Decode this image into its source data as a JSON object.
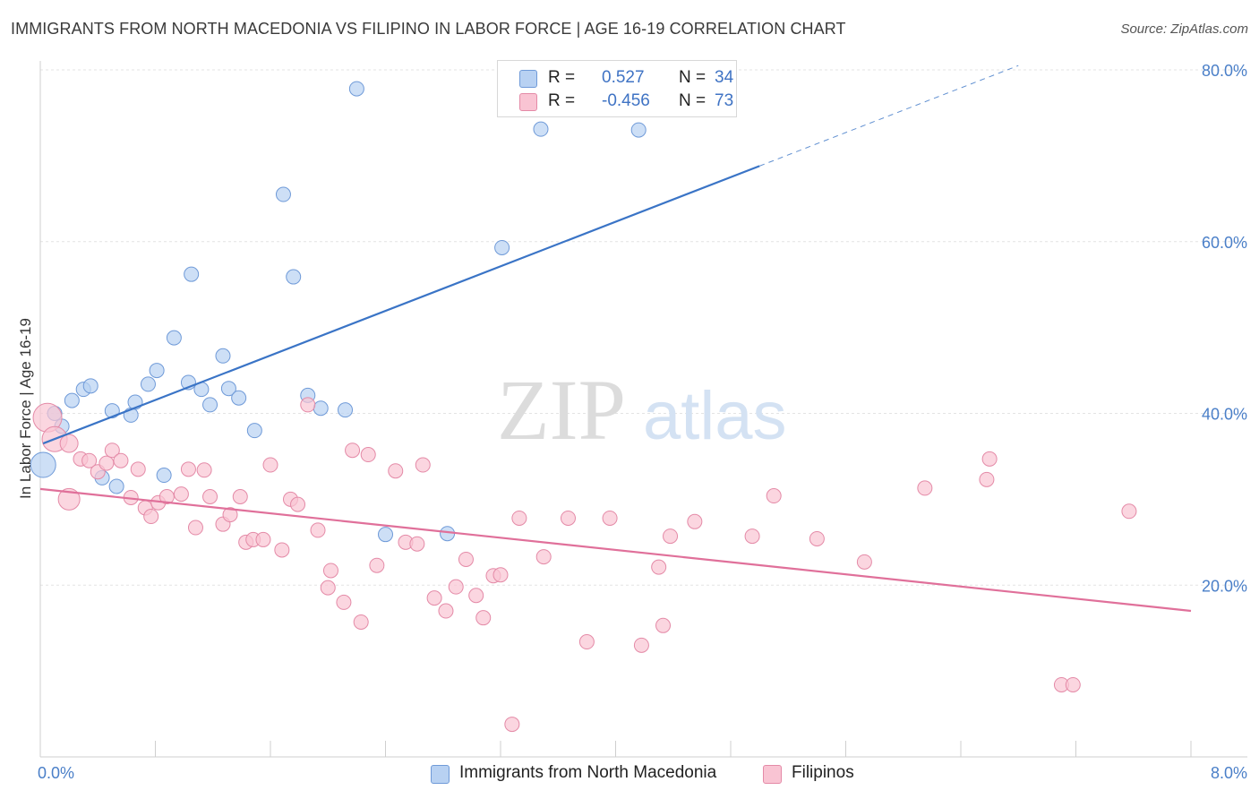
{
  "title": "IMMIGRANTS FROM NORTH MACEDONIA VS FILIPINO IN LABOR FORCE | AGE 16-19 CORRELATION CHART",
  "source": "Source: ZipAtlas.com",
  "watermark": {
    "zip": "ZIP",
    "atlas": "atlas"
  },
  "legend": {
    "series1": {
      "r_label": "R =",
      "r_value": "0.527",
      "n_label": "N =",
      "n_value": "34",
      "color": "#b8d1f2",
      "border": "#6f9ad8"
    },
    "series2": {
      "r_label": "R =",
      "r_value": "-0.456",
      "n_label": "N =",
      "n_value": "73",
      "color": "#f9c4d3",
      "border": "#e48aa7"
    }
  },
  "bottom_legend": {
    "series1": "Immigrants from North Macedonia",
    "series2": "Filipinos"
  },
  "chart_data": {
    "type": "scatter",
    "ylabel": "In Labor Force | Age 16-19",
    "x_range": [
      0,
      8
    ],
    "y_range": [
      0,
      80
    ],
    "x_tick_labels": {
      "min": "0.0%",
      "max": "8.0%"
    },
    "y_ticks": [
      {
        "value": 20,
        "label": "20.0%"
      },
      {
        "value": 40,
        "label": "40.0%"
      },
      {
        "value": 60,
        "label": "60.0%"
      },
      {
        "value": 80,
        "label": "80.0%"
      }
    ],
    "grid": true,
    "series": [
      {
        "name": "Immigrants from North Macedonia",
        "color": "#b8d1f2",
        "stroke": "#6f9ad8",
        "trend": {
          "x0": 0.02,
          "y0": 36.5,
          "x1": 5.0,
          "y1": 68.8,
          "dash_to_x": 6.8,
          "dash_to_y": 80.5,
          "color": "#3a74c6"
        },
        "points": [
          [
            0.02,
            34.0,
            14
          ],
          [
            0.1,
            40.0,
            8
          ],
          [
            0.15,
            38.5,
            8
          ],
          [
            0.22,
            41.5,
            8
          ],
          [
            0.3,
            42.8,
            8
          ],
          [
            0.35,
            43.2,
            8
          ],
          [
            0.43,
            32.5,
            8
          ],
          [
            0.5,
            40.3,
            8
          ],
          [
            0.53,
            31.5,
            8
          ],
          [
            0.63,
            39.8,
            8
          ],
          [
            0.66,
            41.3,
            8
          ],
          [
            0.75,
            43.4,
            8
          ],
          [
            0.81,
            45.0,
            8
          ],
          [
            0.86,
            32.8,
            8
          ],
          [
            0.93,
            48.8,
            8
          ],
          [
            1.03,
            43.6,
            8
          ],
          [
            1.05,
            56.2,
            8
          ],
          [
            1.12,
            42.8,
            8
          ],
          [
            1.18,
            41.0,
            8
          ],
          [
            1.27,
            46.7,
            8
          ],
          [
            1.31,
            42.9,
            8
          ],
          [
            1.38,
            41.8,
            8
          ],
          [
            1.49,
            38.0,
            8
          ],
          [
            1.69,
            65.5,
            8
          ],
          [
            1.76,
            55.9,
            8
          ],
          [
            1.86,
            42.1,
            8
          ],
          [
            1.95,
            40.6,
            8
          ],
          [
            2.12,
            40.4,
            8
          ],
          [
            2.2,
            77.8,
            8
          ],
          [
            2.4,
            25.9,
            8
          ],
          [
            2.83,
            26.0,
            8
          ],
          [
            3.21,
            59.3,
            8
          ],
          [
            3.48,
            73.1,
            8
          ],
          [
            4.16,
            73.0,
            8
          ]
        ]
      },
      {
        "name": "Filipinos",
        "color": "#f9c4d3",
        "stroke": "#e48aa7",
        "trend": {
          "x0": 0.0,
          "y0": 31.2,
          "x1": 8.0,
          "y1": 17.0,
          "color": "#e0709a"
        },
        "points": [
          [
            0.05,
            39.5,
            16
          ],
          [
            0.1,
            37.0,
            14
          ],
          [
            0.2,
            36.5,
            10
          ],
          [
            0.2,
            30.0,
            12
          ],
          [
            0.28,
            34.7,
            8
          ],
          [
            0.34,
            34.5,
            8
          ],
          [
            0.4,
            33.2,
            8
          ],
          [
            0.46,
            34.2,
            8
          ],
          [
            0.5,
            35.7,
            8
          ],
          [
            0.56,
            34.5,
            8
          ],
          [
            0.63,
            30.2,
            8
          ],
          [
            0.68,
            33.5,
            8
          ],
          [
            0.73,
            29.0,
            8
          ],
          [
            0.77,
            28.0,
            8
          ],
          [
            0.82,
            29.6,
            8
          ],
          [
            0.88,
            30.3,
            8
          ],
          [
            0.98,
            30.6,
            8
          ],
          [
            1.03,
            33.5,
            8
          ],
          [
            1.08,
            26.7,
            8
          ],
          [
            1.14,
            33.4,
            8
          ],
          [
            1.18,
            30.3,
            8
          ],
          [
            1.27,
            27.1,
            8
          ],
          [
            1.32,
            28.2,
            8
          ],
          [
            1.39,
            30.3,
            8
          ],
          [
            1.43,
            25.0,
            8
          ],
          [
            1.48,
            25.3,
            8
          ],
          [
            1.55,
            25.3,
            8
          ],
          [
            1.6,
            34.0,
            8
          ],
          [
            1.68,
            24.1,
            8
          ],
          [
            1.74,
            30.0,
            8
          ],
          [
            1.79,
            29.4,
            8
          ],
          [
            1.86,
            41.0,
            8
          ],
          [
            1.93,
            26.4,
            8
          ],
          [
            2.0,
            19.7,
            8
          ],
          [
            2.02,
            21.7,
            8
          ],
          [
            2.11,
            18.0,
            8
          ],
          [
            2.17,
            35.7,
            8
          ],
          [
            2.23,
            15.7,
            8
          ],
          [
            2.28,
            35.2,
            8
          ],
          [
            2.34,
            22.3,
            8
          ],
          [
            2.47,
            33.3,
            8
          ],
          [
            2.54,
            25.0,
            8
          ],
          [
            2.62,
            24.8,
            8
          ],
          [
            2.66,
            34.0,
            8
          ],
          [
            2.74,
            18.5,
            8
          ],
          [
            2.82,
            17.0,
            8
          ],
          [
            2.89,
            19.8,
            8
          ],
          [
            2.96,
            23.0,
            8
          ],
          [
            3.03,
            18.8,
            8
          ],
          [
            3.08,
            16.2,
            8
          ],
          [
            3.15,
            21.1,
            8
          ],
          [
            3.2,
            21.2,
            8
          ],
          [
            3.28,
            3.8,
            8
          ],
          [
            3.33,
            27.8,
            8
          ],
          [
            3.5,
            23.3,
            8
          ],
          [
            3.67,
            27.8,
            8
          ],
          [
            3.8,
            13.4,
            8
          ],
          [
            3.96,
            27.8,
            8
          ],
          [
            4.18,
            13.0,
            8
          ],
          [
            4.3,
            22.1,
            8
          ],
          [
            4.33,
            15.3,
            8
          ],
          [
            4.38,
            25.7,
            8
          ],
          [
            4.55,
            27.4,
            8
          ],
          [
            4.95,
            25.7,
            8
          ],
          [
            5.1,
            30.4,
            8
          ],
          [
            5.4,
            25.4,
            8
          ],
          [
            5.73,
            22.7,
            8
          ],
          [
            6.15,
            31.3,
            8
          ],
          [
            6.58,
            32.3,
            8
          ],
          [
            6.6,
            34.7,
            8
          ],
          [
            7.1,
            8.4,
            8
          ],
          [
            7.18,
            8.4,
            8
          ],
          [
            7.57,
            28.6,
            8
          ]
        ]
      }
    ]
  }
}
